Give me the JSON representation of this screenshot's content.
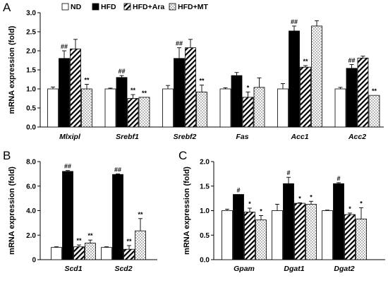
{
  "series_styles": [
    {
      "key": "ND",
      "fill": "white-fill",
      "color": "#ffffff"
    },
    {
      "key": "HFD",
      "fill": "black-fill",
      "color": "#000000"
    },
    {
      "key": "HFD+Ara",
      "fill": "diagonal-hatch",
      "color": "#000000"
    },
    {
      "key": "HFD+MT",
      "fill": "crosshatch-dots",
      "color": "#000000"
    }
  ],
  "chart_data": [
    {
      "panel": "A",
      "type": "bar",
      "ylabel": "mRNA expression (fold)",
      "ylim": [
        0,
        3.0
      ],
      "yticks": [
        "0.0",
        "0.5",
        "1.0",
        "1.5",
        "2.0",
        "2.5",
        "3.0"
      ],
      "categories": [
        "Mlxipl",
        "Srebf1",
        "Srebf2",
        "Fas",
        "Acc1",
        "Acc2"
      ],
      "legend": [
        "ND",
        "HFD",
        "HFD+Ara",
        "HFD+MT"
      ],
      "legend_position": "top",
      "series": [
        {
          "name": "ND",
          "values": [
            1.0,
            1.0,
            1.0,
            1.0,
            1.0,
            1.0
          ],
          "errors": [
            0.05,
            0.02,
            0.09,
            0.03,
            0.14,
            0.04
          ],
          "labels": [
            "",
            "",
            "",
            "",
            "",
            ""
          ]
        },
        {
          "name": "HFD",
          "values": [
            1.8,
            1.3,
            1.8,
            1.35,
            2.52,
            1.54
          ],
          "errors": [
            0.2,
            0.05,
            0.28,
            0.08,
            0.13,
            0.1
          ],
          "labels": [
            "##",
            "##",
            "##",
            "",
            "##",
            "##"
          ]
        },
        {
          "name": "HFD+Ara",
          "values": [
            2.05,
            0.75,
            2.08,
            0.78,
            1.57,
            1.81
          ],
          "errors": [
            0.25,
            0.1,
            0.22,
            0.14,
            0.04,
            0.05
          ],
          "labels": [
            "",
            "**",
            "",
            "*",
            "**",
            ""
          ]
        },
        {
          "name": "HFD+MT",
          "values": [
            1.0,
            0.78,
            0.92,
            1.04,
            2.65,
            0.83
          ],
          "errors": [
            0.12,
            0.0,
            0.18,
            0.25,
            0.14,
            0.0
          ],
          "labels": [
            "**",
            "**",
            "**",
            "",
            "",
            "**"
          ]
        }
      ]
    },
    {
      "panel": "B",
      "type": "bar",
      "ylabel": "mRNA expression (fold)",
      "ylim": [
        0,
        8.0
      ],
      "yticks": [
        "0",
        "2.0",
        "4.0",
        "6.0",
        "8.0"
      ],
      "categories": [
        "Scd1",
        "Scd2"
      ],
      "series": [
        {
          "name": "ND",
          "values": [
            1.0,
            1.0
          ],
          "errors": [
            0.05,
            0.05
          ],
          "labels": [
            "",
            ""
          ]
        },
        {
          "name": "HFD",
          "values": [
            7.2,
            6.95
          ],
          "errors": [
            0.07,
            0.05
          ],
          "labels": [
            "##",
            "##"
          ]
        },
        {
          "name": "HFD+Ara",
          "values": [
            1.05,
            0.85
          ],
          "errors": [
            0.15,
            0.3
          ],
          "labels": [
            "**",
            "**"
          ]
        },
        {
          "name": "HFD+MT",
          "values": [
            1.35,
            2.35
          ],
          "errors": [
            0.25,
            1.0
          ],
          "labels": [
            "**",
            "**"
          ]
        }
      ]
    },
    {
      "panel": "C",
      "type": "bar",
      "ylabel": "mRNA expression (fold)",
      "ylim": [
        0,
        2.0
      ],
      "yticks": [
        "0.0",
        "0.5",
        "1.0",
        "1.5",
        "2.0"
      ],
      "categories": [
        "Gpam",
        "Dgat1",
        "Dgat2"
      ],
      "series": [
        {
          "name": "ND",
          "values": [
            1.0,
            1.0,
            1.0
          ],
          "errors": [
            0.03,
            0.13,
            0.01
          ],
          "labels": [
            "",
            "",
            ""
          ]
        },
        {
          "name": "HFD",
          "values": [
            1.33,
            1.55,
            1.55
          ],
          "errors": [
            0.0,
            0.13,
            0.02
          ],
          "labels": [
            "#",
            "#",
            "#"
          ]
        },
        {
          "name": "HFD+Ara",
          "values": [
            0.97,
            1.15,
            0.92
          ],
          "errors": [
            0.08,
            0.01,
            0.03
          ],
          "labels": [
            "*",
            "*",
            "*"
          ]
        },
        {
          "name": "HFD+MT",
          "values": [
            0.81,
            1.13,
            0.83
          ],
          "errors": [
            0.09,
            0.06,
            0.23
          ],
          "labels": [
            "*",
            "*",
            "*"
          ]
        }
      ]
    }
  ]
}
